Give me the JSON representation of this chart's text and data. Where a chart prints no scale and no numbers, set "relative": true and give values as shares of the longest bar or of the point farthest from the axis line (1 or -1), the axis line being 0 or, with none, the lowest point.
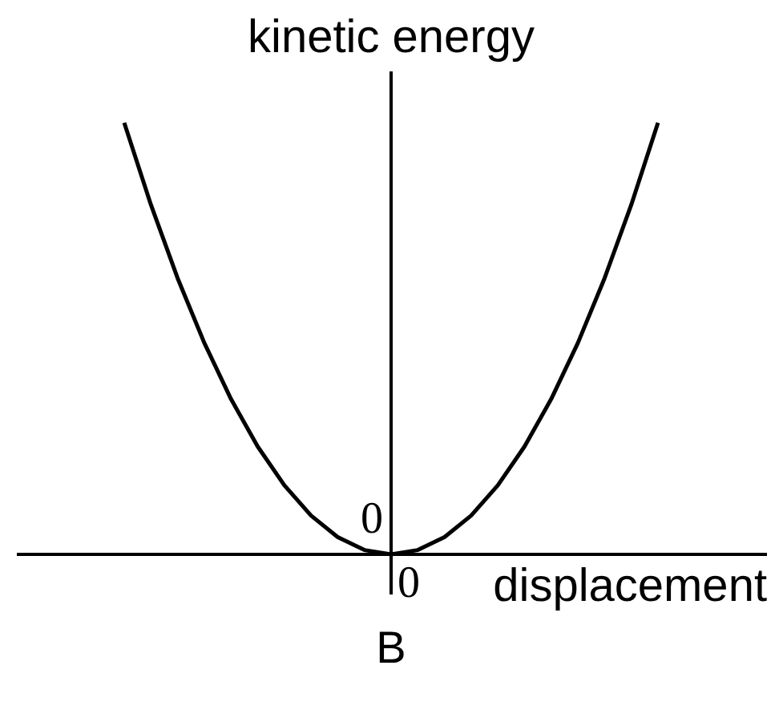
{
  "chart_data": {
    "type": "line",
    "relative": true,
    "ylabel": "kinetic energy",
    "xlabel": "displacement",
    "categories": [
      null,
      null,
      null,
      null,
      null,
      null,
      null,
      null,
      null,
      null,
      null,
      null,
      null,
      null,
      null,
      null,
      null,
      null,
      null,
      null,
      null
    ],
    "values": [
      1,
      0.81,
      0.64,
      0.49,
      0.36,
      0.25,
      0.16,
      0.09,
      0.04,
      0.01,
      0,
      0.01,
      0.04,
      0.09,
      0.16,
      0.25,
      0.36,
      0.49,
      0.64,
      0.81,
      1
    ],
    "color": "#000000",
    "annotations": [
      {
        "text": "0",
        "y": 0
      },
      "0",
      "B"
    ]
  }
}
